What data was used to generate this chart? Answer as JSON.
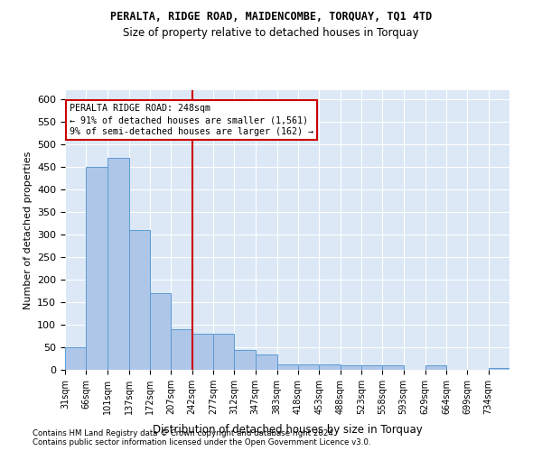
{
  "title1": "PERALTA, RIDGE ROAD, MAIDENCOMBE, TORQUAY, TQ1 4TD",
  "title2": "Size of property relative to detached houses in Torquay",
  "xlabel": "Distribution of detached houses by size in Torquay",
  "ylabel": "Number of detached properties",
  "footer1": "Contains HM Land Registry data © Crown copyright and database right 2024.",
  "footer2": "Contains public sector information licensed under the Open Government Licence v3.0.",
  "bar_color": "#aec6e8",
  "bar_edge_color": "#5b9bd5",
  "background_color": "#dce8f5",
  "vline_x": 242,
  "vline_color": "#cc0000",
  "annotation_title": "PERALTA RIDGE ROAD: 248sqm",
  "annotation_line1": "← 91% of detached houses are smaller (1,561)",
  "annotation_line2": "9% of semi-detached houses are larger (162) →",
  "categories": [
    "31sqm",
    "66sqm",
    "101sqm",
    "137sqm",
    "172sqm",
    "207sqm",
    "242sqm",
    "277sqm",
    "312sqm",
    "347sqm",
    "383sqm",
    "418sqm",
    "453sqm",
    "488sqm",
    "523sqm",
    "558sqm",
    "593sqm",
    "629sqm",
    "664sqm",
    "699sqm",
    "734sqm"
  ],
  "bin_edges": [
    31,
    66,
    101,
    137,
    172,
    207,
    242,
    277,
    312,
    347,
    383,
    418,
    453,
    488,
    523,
    558,
    593,
    629,
    664,
    699,
    734,
    769
  ],
  "values": [
    50,
    450,
    470,
    310,
    170,
    90,
    80,
    80,
    45,
    35,
    12,
    12,
    12,
    10,
    10,
    10,
    0,
    10,
    0,
    0,
    5
  ],
  "ylim": [
    0,
    620
  ],
  "yticks": [
    0,
    50,
    100,
    150,
    200,
    250,
    300,
    350,
    400,
    450,
    500,
    550,
    600
  ]
}
